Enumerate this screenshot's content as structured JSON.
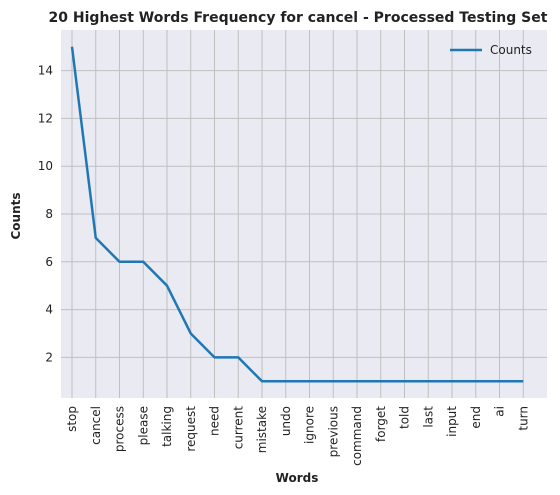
{
  "chart_data": {
    "type": "line",
    "title": "20 Highest Words Frequency for cancel - Processed Testing Set",
    "xlabel": "Words",
    "ylabel": "Counts",
    "categories": [
      "stop",
      "cancel",
      "process",
      "please",
      "talking",
      "request",
      "need",
      "current",
      "mistake",
      "undo",
      "ignore",
      "previous",
      "command",
      "forget",
      "told",
      "last",
      "input",
      "end",
      "ai",
      "turn"
    ],
    "series": [
      {
        "name": "Counts",
        "values": [
          15,
          7,
          6,
          6,
          5,
          3,
          2,
          2,
          1,
          1,
          1,
          1,
          1,
          1,
          1,
          1,
          1,
          1,
          1,
          1
        ]
      }
    ],
    "ylim": [
      0.3,
      15.7
    ],
    "yticks": [
      2,
      4,
      6,
      8,
      10,
      12,
      14
    ],
    "grid": true,
    "legend": "top-right",
    "colors": {
      "line": "#1f77b4",
      "plot_background": "#eaeaf2",
      "grid": "#c0c0c0"
    }
  }
}
